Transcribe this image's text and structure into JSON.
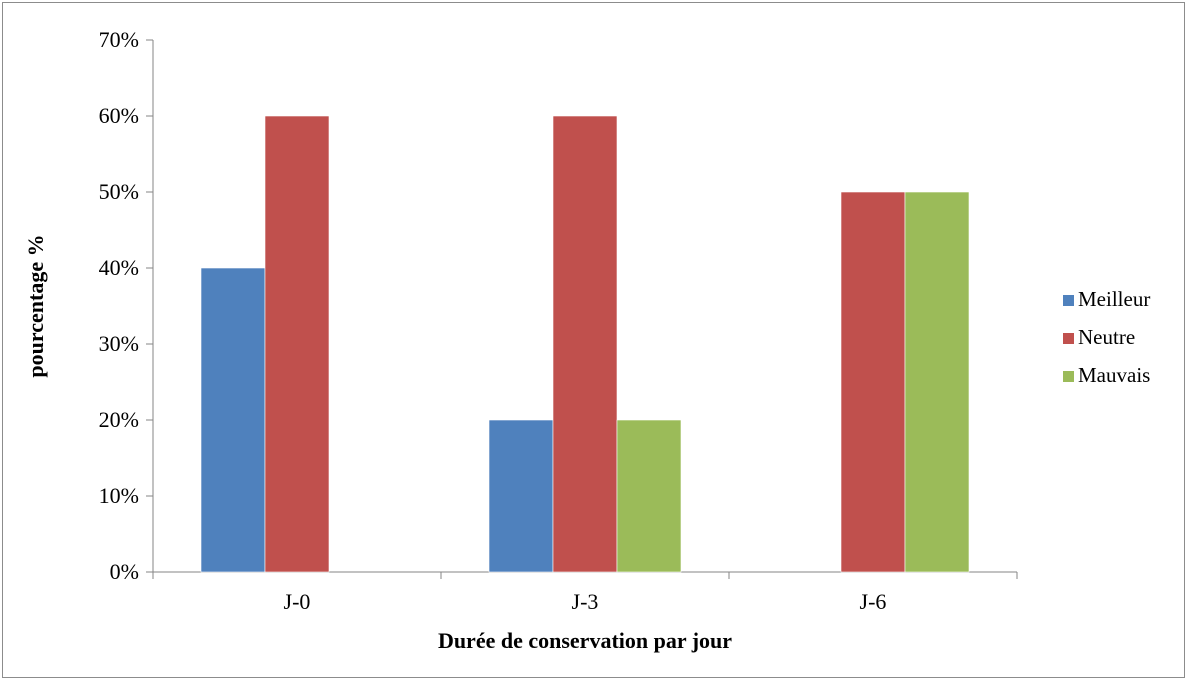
{
  "chart_data": {
    "type": "bar",
    "categories": [
      "J-0",
      "J-3",
      "J-6"
    ],
    "series": [
      {
        "name": "Meilleur",
        "values": [
          40,
          20,
          0
        ],
        "color": "#4f81bd"
      },
      {
        "name": "Neutre",
        "values": [
          60,
          60,
          50
        ],
        "color": "#c0504d"
      },
      {
        "name": "Mauvais",
        "values": [
          0,
          20,
          50
        ],
        "color": "#9bbb59"
      }
    ],
    "xlabel": "Durée de conservation par jour",
    "ylabel": "pourcentage %",
    "ylim": [
      0,
      70
    ],
    "yticks": [
      "0%",
      "10%",
      "20%",
      "30%",
      "40%",
      "50%",
      "60%",
      "70%"
    ],
    "grid": false,
    "legend": "right"
  }
}
